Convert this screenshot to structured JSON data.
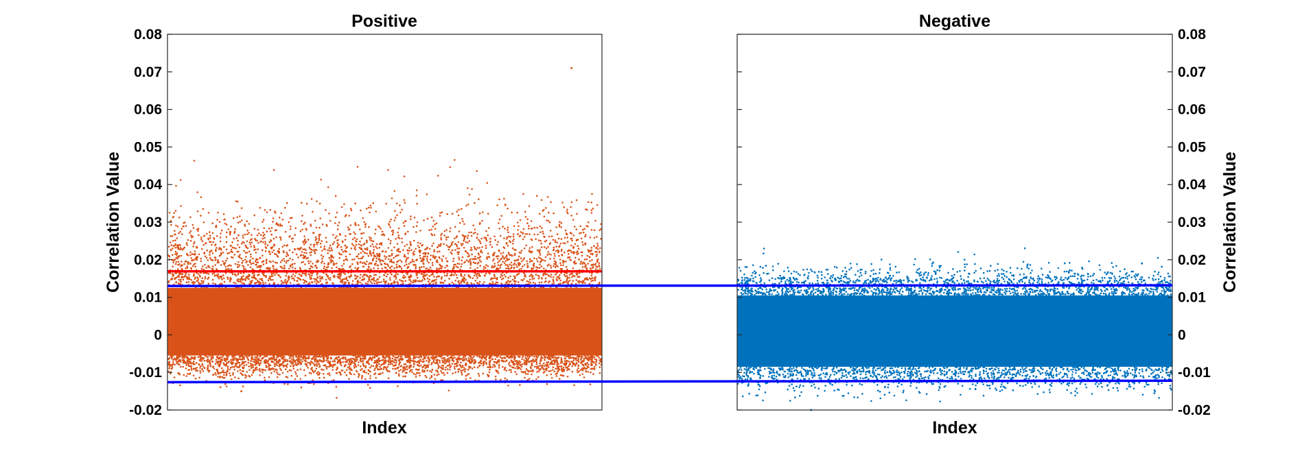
{
  "chart_data": [
    {
      "type": "scatter",
      "title": "Positive",
      "xlabel": "Index",
      "ylabel": "Correlation Value",
      "ylim": [
        -0.02,
        0.08
      ],
      "yticks": [
        "-0.02",
        "-0.01",
        "0",
        "0.01",
        "0.02",
        "0.03",
        "0.04",
        "0.05",
        "0.06",
        "0.07",
        "0.08"
      ],
      "ytick_side": "left",
      "grid": false,
      "series": [
        {
          "color": "#D95319",
          "core_band": [
            -0.0055,
            0.0125
          ],
          "outlier_max": 0.071,
          "outlier_min": -0.015
        }
      ],
      "reference_lines": [
        {
          "color": "#FF0000",
          "y": 0.0169
        },
        {
          "color": "#0000FF",
          "y": 0.013
        },
        {
          "color": "#0000FF",
          "y": -0.0126
        }
      ]
    },
    {
      "type": "scatter",
      "title": "Negative",
      "xlabel": "Index",
      "ylabel": "Correlation Value",
      "ylim": [
        -0.02,
        0.08
      ],
      "yticks": [
        "-0.02",
        "-0.01",
        "0",
        "0.01",
        "0.02",
        "0.03",
        "0.04",
        "0.05",
        "0.06",
        "0.07",
        "0.08"
      ],
      "ytick_side": "right",
      "grid": false,
      "series": [
        {
          "color": "#0072BD",
          "core_band": [
            -0.0085,
            0.0105
          ],
          "outlier_max": 0.019,
          "outlier_min": -0.02
        }
      ],
      "reference_lines": [
        {
          "color": "#0000FF",
          "y": 0.0132
        },
        {
          "color": "#0000FF",
          "y": -0.0122
        }
      ]
    }
  ]
}
